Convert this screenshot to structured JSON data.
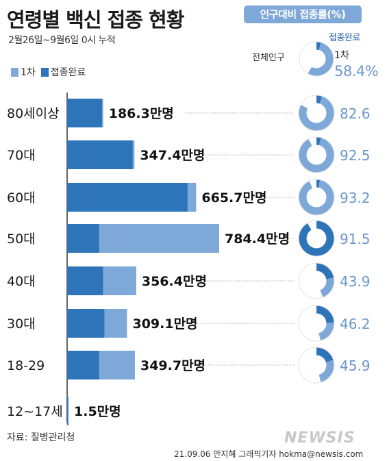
{
  "header": {
    "title": "연령별 백신 접종 현황",
    "subtitle": "2월26일~9월6일 0시 누적",
    "rate_badge": "인구대비 접종률(%)"
  },
  "legend": {
    "first": "1차",
    "complete": "접종완료"
  },
  "colors": {
    "first": "#7ea8d8",
    "complete": "#2e74b8",
    "ring_bg": "#ffffff",
    "dotline": "#b5b5b5"
  },
  "total": {
    "label": "전체인구",
    "first_label": "1차",
    "complete_label": "접종완료",
    "first_pct": 58.4,
    "complete_pct": 4,
    "first_pct_text": "58.4%"
  },
  "chart_data": {
    "type": "bar",
    "orientation": "horizontal",
    "stacked": true,
    "value_unit": "만명",
    "categories": [
      "80세이상",
      "70대",
      "60대",
      "50대",
      "40대",
      "30대",
      "18-29",
      "12~17세"
    ],
    "first_totals": [
      186.3,
      347.4,
      665.7,
      784.4,
      356.4,
      309.1,
      349.7,
      1.5
    ],
    "value_labels": [
      "186.3만명",
      "347.4만명",
      "665.7만명",
      "784.4만명",
      "356.4만명",
      "309.1만명",
      "349.7만명",
      "1.5만명"
    ],
    "series": [
      {
        "name": "1차",
        "values": [
          186.3,
          347.4,
          665.7,
          784.4,
          356.4,
          309.1,
          349.7,
          1.5
        ]
      },
      {
        "name": "접종완료",
        "values": [
          180,
          338,
          621,
          165,
          185,
          192,
          165,
          1
        ]
      }
    ],
    "first_rate_pct": [
      82.6,
      92.5,
      93.2,
      91.5,
      43.9,
      46.2,
      45.9
    ],
    "first_rate_labels": [
      "82.6",
      "92.5",
      "93.2",
      "91.5",
      "43.9",
      "46.2",
      "45.9"
    ],
    "complete_rate_pct": [
      5,
      4,
      3,
      91,
      22,
      24,
      20
    ]
  },
  "footer": {
    "source": "자료: 질병관리청",
    "credit": "21.09.06 안지혜 그래픽기자 hokma@newsis.com",
    "logo": "NEWSIS"
  }
}
